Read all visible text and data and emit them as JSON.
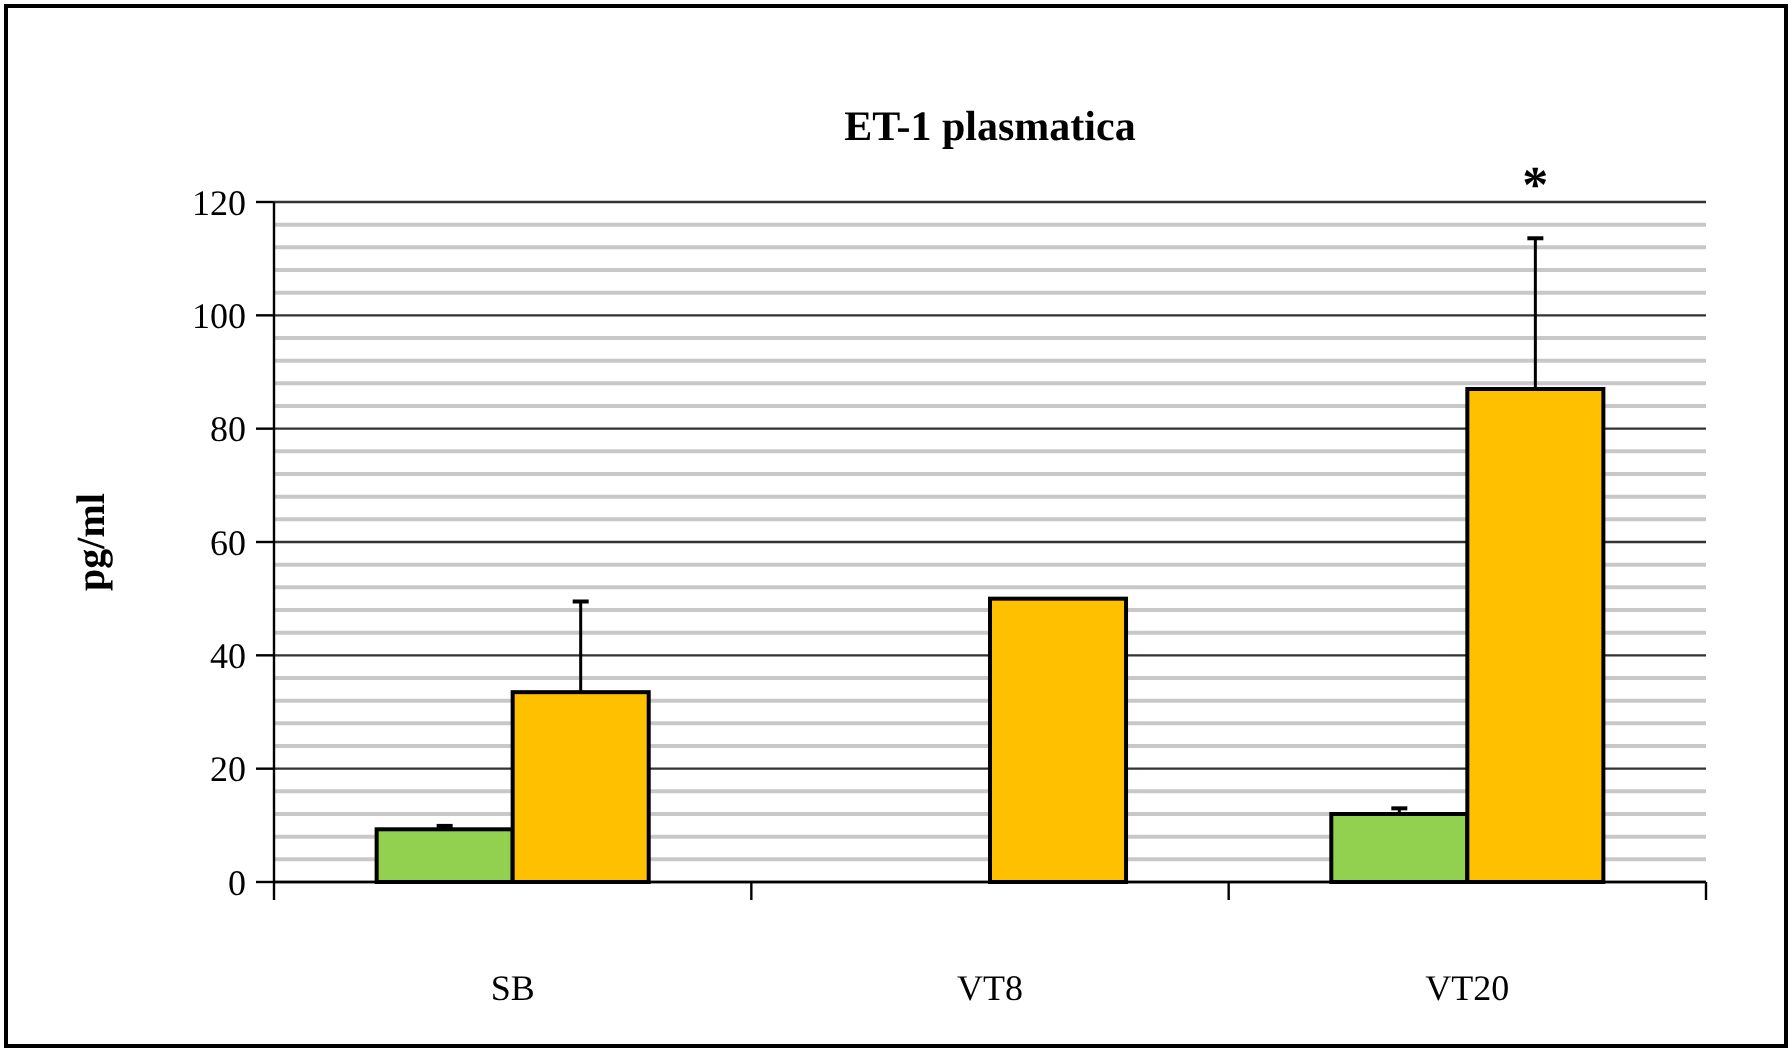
{
  "chart_data": {
    "type": "bar",
    "title": "ET-1 plasmatica",
    "ylabel": "pg/ml",
    "categories": [
      "SB",
      "VT8",
      "VT20"
    ],
    "series": [
      {
        "color": "#92d050",
        "values": [
          9.3,
          null,
          12
        ],
        "errors": [
          0.6,
          null,
          1
        ]
      },
      {
        "color": "#ffc000",
        "values": [
          33.5,
          50,
          87
        ],
        "errors": [
          16,
          null,
          26.6
        ]
      }
    ],
    "ylim": [
      0,
      120
    ],
    "yticks": [
      0,
      {
        "value": 4,
        "label": null
      },
      {
        "value": 8,
        "label": null
      },
      {
        "value": 12,
        "label": null
      },
      {
        "value": 16,
        "label": null
      },
      20,
      {
        "value": 24,
        "label": null
      },
      {
        "value": 28,
        "label": null
      },
      {
        "value": 32,
        "label": null
      },
      {
        "value": 36,
        "label": null
      },
      40,
      {
        "value": 44,
        "label": null
      },
      {
        "value": 48,
        "label": null
      },
      {
        "value": 52,
        "label": null
      },
      {
        "value": 56,
        "label": null
      },
      60,
      {
        "value": 64,
        "label": null
      },
      {
        "value": 68,
        "label": null
      },
      {
        "value": 72,
        "label": null
      },
      {
        "value": 76,
        "label": null
      },
      80,
      {
        "value": 84,
        "label": null
      },
      {
        "value": 88,
        "label": null
      },
      {
        "value": 92,
        "label": null
      },
      {
        "value": 96,
        "label": null
      },
      100,
      {
        "value": 104,
        "label": null
      },
      {
        "value": 108,
        "label": null
      },
      {
        "value": 112,
        "label": null
      },
      {
        "value": 116,
        "label": null
      },
      120
    ],
    "grid": "y",
    "annotations": [
      "*"
    ]
  }
}
